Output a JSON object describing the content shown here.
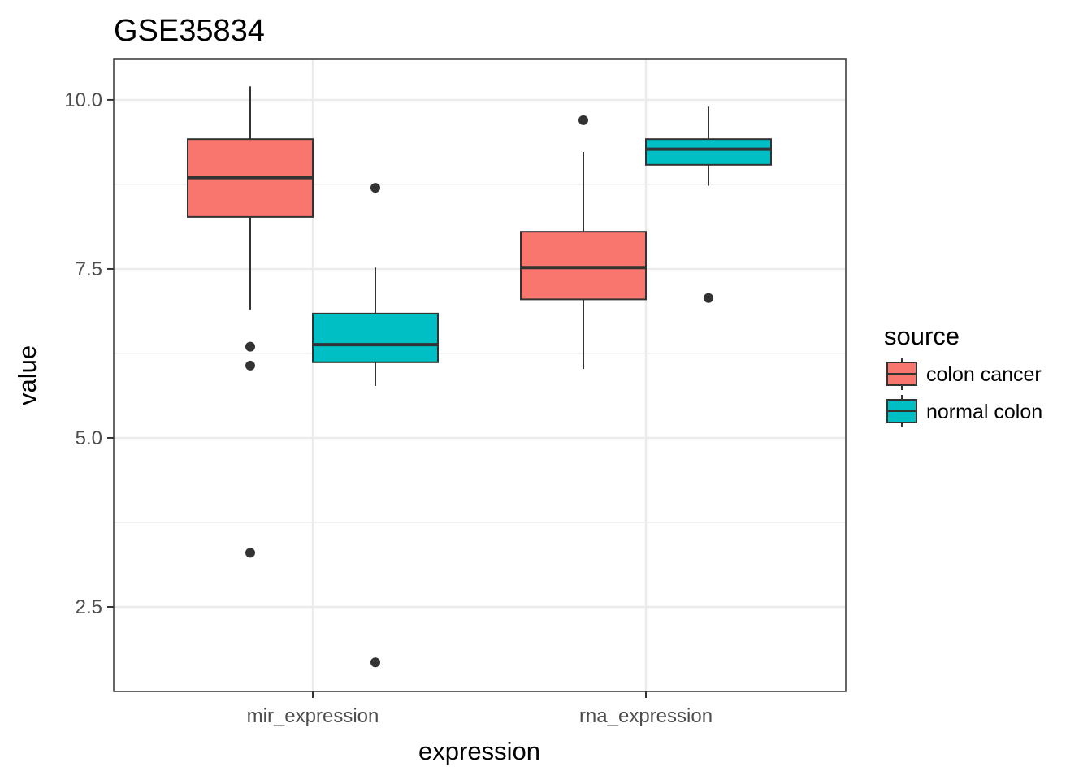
{
  "chart_data": {
    "type": "boxplot",
    "title": "GSE35834",
    "xlabel": "expression",
    "ylabel": "value",
    "ylim": [
      1.25,
      10.6
    ],
    "yticks": [
      2.5,
      5.0,
      7.5,
      10.0
    ],
    "ytick_labels": [
      "2.5",
      "5.0",
      "7.5",
      "10.0"
    ],
    "categories": [
      "mir_expression",
      "rna_expression"
    ],
    "grid": true,
    "legend": {
      "title": "source",
      "placement": "right",
      "entries": [
        "colon cancer",
        "normal colon"
      ]
    },
    "colors": {
      "colon cancer": "#F8766D",
      "normal colon": "#00BFC4"
    },
    "series": [
      {
        "name": "colon cancer",
        "boxes": [
          {
            "category": "mir_expression",
            "whisker_low": 6.9,
            "q1": 8.27,
            "median": 8.85,
            "q3": 9.42,
            "whisker_high": 10.2,
            "outliers": [
              6.35,
              6.07,
              3.3
            ]
          },
          {
            "category": "rna_expression",
            "whisker_low": 6.02,
            "q1": 7.05,
            "median": 7.52,
            "q3": 8.05,
            "whisker_high": 9.23,
            "outliers": [
              9.7
            ]
          }
        ]
      },
      {
        "name": "normal colon",
        "boxes": [
          {
            "category": "mir_expression",
            "whisker_low": 5.77,
            "q1": 6.12,
            "median": 6.38,
            "q3": 6.84,
            "whisker_high": 7.52,
            "outliers": [
              8.7,
              1.68
            ]
          },
          {
            "category": "rna_expression",
            "whisker_low": 8.73,
            "q1": 9.04,
            "median": 9.27,
            "q3": 9.42,
            "whisker_high": 9.9,
            "outliers": [
              7.07
            ]
          }
        ]
      }
    ]
  }
}
